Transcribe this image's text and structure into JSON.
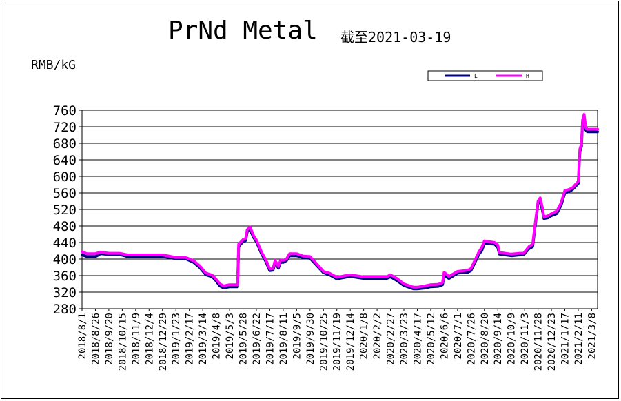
{
  "title": "PrNd Metal",
  "subtitle": "截至2021-03-19",
  "unit_label": "RMB/kG",
  "chart_data": {
    "type": "line",
    "title": "PrNd Metal",
    "subtitle": "截至2021-03-19",
    "ylabel": "RMB/kG",
    "ylim": [
      280,
      760
    ],
    "yticks": [
      760,
      720,
      680,
      640,
      600,
      560,
      520,
      480,
      440,
      400,
      360,
      320,
      280
    ],
    "grid": true,
    "legend": "top-right",
    "x_tick_labels": [
      "2018/8/1",
      "2018/8/26",
      "2018/9/20",
      "2018/10/15",
      "2018/11/9",
      "2018/12/4",
      "2018/12/29",
      "2019/1/23",
      "2019/2/17",
      "2019/3/14",
      "2019/4/8",
      "2019/5/3",
      "2019/5/28",
      "2019/6/22",
      "2019/7/17",
      "2019/8/11",
      "2019/9/5",
      "2019/9/30",
      "2019/10/25",
      "2019/11/19",
      "2019/12/14",
      "2020/1/8",
      "2020/2/2",
      "2020/2/27",
      "2020/3/23",
      "2020/4/17",
      "2020/5/12",
      "2020/6/6",
      "2020/7/1",
      "2020/7/26",
      "2020/8/20",
      "2020/9/14",
      "2020/10/9",
      "2020/11/3",
      "2020/11/28",
      "2020/12/23",
      "2021/1/17",
      "2021/2/11",
      "2021/3/8"
    ],
    "x": [
      "2018-08-01",
      "2018-08-10",
      "2018-08-26",
      "2018-09-05",
      "2018-09-20",
      "2018-10-10",
      "2018-10-25",
      "2018-11-09",
      "2018-12-04",
      "2018-12-29",
      "2019-01-23",
      "2019-02-10",
      "2019-02-25",
      "2019-03-08",
      "2019-03-20",
      "2019-04-01",
      "2019-04-08",
      "2019-04-15",
      "2019-04-22",
      "2019-05-03",
      "2019-05-18",
      "2019-05-20",
      "2019-05-23",
      "2019-05-28",
      "2019-06-02",
      "2019-06-05",
      "2019-06-10",
      "2019-06-17",
      "2019-06-22",
      "2019-07-02",
      "2019-07-10",
      "2019-07-17",
      "2019-07-23",
      "2019-07-27",
      "2019-08-02",
      "2019-08-06",
      "2019-08-11",
      "2019-08-17",
      "2019-08-23",
      "2019-09-05",
      "2019-09-18",
      "2019-09-30",
      "2019-10-10",
      "2019-10-25",
      "2019-11-05",
      "2019-11-19",
      "2019-12-14",
      "2020-01-08",
      "2020-02-02",
      "2020-02-20",
      "2020-02-27",
      "2020-03-10",
      "2020-03-23",
      "2020-04-10",
      "2020-04-17",
      "2020-05-01",
      "2020-05-12",
      "2020-05-26",
      "2020-06-03",
      "2020-06-06",
      "2020-06-15",
      "2020-07-01",
      "2020-07-20",
      "2020-07-26",
      "2020-08-10",
      "2020-08-15",
      "2020-08-20",
      "2020-09-08",
      "2020-09-14",
      "2020-09-17",
      "2020-10-09",
      "2020-10-25",
      "2020-11-01",
      "2020-11-11",
      "2020-11-18",
      "2020-11-22",
      "2020-11-28",
      "2020-12-02",
      "2020-12-06",
      "2020-12-09",
      "2020-12-17",
      "2020-12-23",
      "2021-01-02",
      "2021-01-10",
      "2021-01-17",
      "2021-01-24",
      "2021-01-31",
      "2021-02-11",
      "2021-02-14",
      "2021-02-17",
      "2021-02-19",
      "2021-02-22",
      "2021-02-25",
      "2021-02-28",
      "2021-03-03",
      "2021-03-08",
      "2021-03-19"
    ],
    "series": [
      {
        "name": "L",
        "color": "#000080",
        "values": [
          410,
          406,
          406,
          413,
          411,
          411,
          406,
          406,
          406,
          406,
          401,
          401,
          392,
          380,
          362,
          357,
          347,
          335,
          330,
          333,
          333,
          430,
          435,
          442,
          445,
          466,
          472,
          452,
          442,
          412,
          393,
          372,
          373,
          392,
          378,
          392,
          392,
          396,
          408,
          408,
          403,
          402,
          388,
          367,
          362,
          352,
          358,
          353,
          353,
          353,
          357,
          348,
          336,
          328,
          328,
          330,
          333,
          334,
          338,
          360,
          353,
          366,
          368,
          372,
          412,
          420,
          438,
          436,
          428,
          412,
          408,
          410,
          410,
          425,
          430,
          472,
          535,
          540,
          520,
          498,
          500,
          505,
          510,
          530,
          560,
          563,
          568,
          583,
          660,
          672,
          730,
          743,
          712,
          708,
          708,
          708,
          708
        ]
      },
      {
        "name": "H",
        "color": "#ff00ff",
        "values": [
          418,
          413,
          413,
          417,
          414,
          414,
          410,
          410,
          410,
          410,
          404,
          404,
          396,
          384,
          366,
          361,
          351,
          340,
          335,
          338,
          338,
          436,
          440,
          447,
          450,
          471,
          478,
          456,
          446,
          416,
          397,
          376,
          377,
          397,
          382,
          397,
          397,
          400,
          413,
          413,
          407,
          406,
          392,
          370,
          366,
          356,
          362,
          357,
          357,
          357,
          362,
          353,
          340,
          332,
          332,
          335,
          338,
          339,
          343,
          368,
          358,
          370,
          373,
          377,
          418,
          428,
          444,
          440,
          434,
          416,
          412,
          414,
          414,
          430,
          436,
          478,
          540,
          548,
          526,
          502,
          505,
          510,
          516,
          536,
          566,
          568,
          572,
          588,
          666,
          678,
          736,
          750,
          718,
          714,
          714,
          714,
          714
        ]
      }
    ]
  },
  "legend": {
    "L": "L",
    "H": "H"
  }
}
